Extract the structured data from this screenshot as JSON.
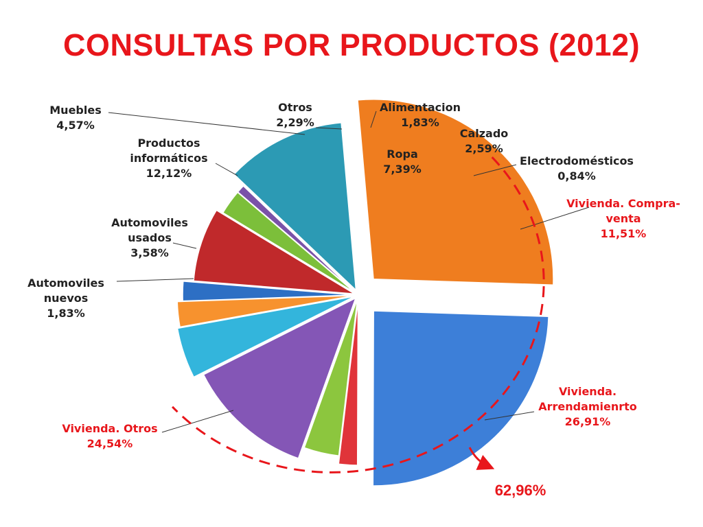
{
  "title": "CONSULTAS POR PRODUCTOS (2012)",
  "chart_data": {
    "type": "pie",
    "title": "CONSULTAS POR PRODUCTOS (2012)",
    "slices": [
      {
        "label": [
          "Alimentacion",
          "1,83%"
        ],
        "value": 1.83,
        "color": "#2d6fc4",
        "label_color": "#222222"
      },
      {
        "label": [
          "Ropa",
          "7,39%"
        ],
        "value": 7.39,
        "color": "#c0292b",
        "label_color": "#222222"
      },
      {
        "label": [
          "Calzado",
          "2,59%"
        ],
        "value": 2.59,
        "color": "#7cbf3a",
        "label_color": "#222222"
      },
      {
        "label": [
          "Electrodomésticos",
          "0,84%"
        ],
        "value": 0.84,
        "color": "#7a52a8",
        "label_color": "#222222"
      },
      {
        "label": [
          "Vivienda. Compra-",
          "venta",
          "11,51%"
        ],
        "value": 11.51,
        "color": "#2c9ab4",
        "label_color": "#e8161b"
      },
      {
        "label": [
          "Vivienda.",
          "Arrendamienrto",
          "26,91%"
        ],
        "value": 26.91,
        "color": "#ef7d1f",
        "label_color": "#e8161b"
      },
      {
        "label": [
          "Vivienda. Otros",
          "24,54%"
        ],
        "value": 24.54,
        "color": "#3d7fd8",
        "label_color": "#e8161b"
      },
      {
        "label": [
          "Automoviles",
          "nuevos",
          "1,83%"
        ],
        "value": 1.83,
        "color": "#e0343a",
        "label_color": "#222222"
      },
      {
        "label": [
          "Automoviles",
          "usados",
          "3,58%"
        ],
        "value": 3.58,
        "color": "#8cc63e",
        "label_color": "#222222"
      },
      {
        "label": [
          "Productos",
          "informáticos",
          "12,12%"
        ],
        "value": 12.12,
        "color": "#8456b6",
        "label_color": "#222222"
      },
      {
        "label": [
          "Muebles",
          "4,57%"
        ],
        "value": 4.57,
        "color": "#33b5dc",
        "label_color": "#222222"
      },
      {
        "label": [
          "Otros",
          "2,29%"
        ],
        "value": 2.29,
        "color": "#f7922e",
        "label_color": "#222222"
      }
    ],
    "annotation": {
      "text": "62,96%",
      "color": "#e8161b",
      "group": [
        "Vivienda. Compra-venta",
        "Vivienda. Arrendamienrto",
        "Vivienda. Otros"
      ]
    },
    "legend": "none"
  }
}
